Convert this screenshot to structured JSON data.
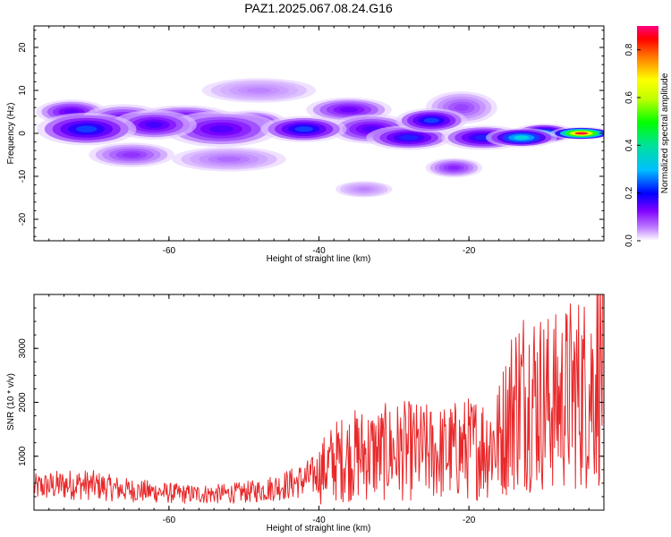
{
  "title": "PAZ1.2025.067.08.24.G16",
  "chart_data": [
    {
      "type": "heatmap",
      "xlabel": "Height of straight line (km)",
      "ylabel": "Frequency (Hz)",
      "xlim": [
        -78,
        -2
      ],
      "ylim": [
        -25,
        25
      ],
      "xticks": [
        -60,
        -40,
        -20
      ],
      "yticks": [
        -20,
        -10,
        0,
        10,
        20
      ],
      "grid": false,
      "colorbar": {
        "label": "Normalized spectral amplitude",
        "range": [
          0,
          0.9
        ],
        "ticks": [
          0.0,
          0.2,
          0.4,
          0.6,
          0.8
        ],
        "colormap": "rainbow"
      },
      "blobs": [
        {
          "x": -71,
          "y": 1,
          "sx": 3.5,
          "sy": 2.0,
          "a": 0.22
        },
        {
          "x": -73,
          "y": 5,
          "sx": 2.5,
          "sy": 1.5,
          "a": 0.14
        },
        {
          "x": -66,
          "y": 3,
          "sx": 3.0,
          "sy": 2.0,
          "a": 0.14
        },
        {
          "x": -62,
          "y": 2,
          "sx": 3.0,
          "sy": 1.8,
          "a": 0.16
        },
        {
          "x": -58,
          "y": 3.5,
          "sx": 3.5,
          "sy": 1.6,
          "a": 0.14
        },
        {
          "x": -53,
          "y": 1,
          "sx": 4.0,
          "sy": 2.2,
          "a": 0.15
        },
        {
          "x": -49,
          "y": 2.5,
          "sx": 2.5,
          "sy": 1.5,
          "a": 0.14
        },
        {
          "x": -42,
          "y": 1,
          "sx": 3.0,
          "sy": 1.6,
          "a": 0.22
        },
        {
          "x": -36,
          "y": 5.5,
          "sx": 3.0,
          "sy": 1.5,
          "a": 0.13
        },
        {
          "x": -33,
          "y": 1,
          "sx": 3.0,
          "sy": 1.8,
          "a": 0.15
        },
        {
          "x": -28,
          "y": -1,
          "sx": 3.0,
          "sy": 1.5,
          "a": 0.2
        },
        {
          "x": -25,
          "y": 3,
          "sx": 2.5,
          "sy": 1.5,
          "a": 0.22
        },
        {
          "x": -18,
          "y": -1,
          "sx": 3.0,
          "sy": 1.5,
          "a": 0.2
        },
        {
          "x": -13,
          "y": -1,
          "sx": 2.5,
          "sy": 1.2,
          "a": 0.35
        },
        {
          "x": -10,
          "y": 0,
          "sx": 2.2,
          "sy": 1.2,
          "a": 0.3
        },
        {
          "x": -5,
          "y": 0,
          "sx": 2.2,
          "sy": 0.8,
          "a": 0.85
        },
        {
          "x": -52,
          "y": -6,
          "sx": 4.0,
          "sy": 1.5,
          "a": 0.06
        },
        {
          "x": -65,
          "y": -5,
          "sx": 3.0,
          "sy": 1.5,
          "a": 0.09
        },
        {
          "x": -22,
          "y": -8,
          "sx": 2.0,
          "sy": 1.2,
          "a": 0.1
        },
        {
          "x": -21,
          "y": 6,
          "sx": 2.5,
          "sy": 2.0,
          "a": 0.08
        },
        {
          "x": -48,
          "y": 10,
          "sx": 4.0,
          "sy": 1.5,
          "a": 0.05
        },
        {
          "x": -34,
          "y": -13,
          "sx": 2.0,
          "sy": 1.0,
          "a": 0.05
        }
      ]
    },
    {
      "type": "line",
      "xlabel": "Height of straight line (km)",
      "ylabel": "SNR (10 * v/v)",
      "xlim": [
        -78,
        -2
      ],
      "ylim": [
        0,
        4000
      ],
      "xticks": [
        -60,
        -40,
        -20
      ],
      "yticks": [
        1000,
        2000,
        3000
      ],
      "grid": false,
      "color": "#e8282a",
      "series": [
        {
          "x": [
            -78,
            -76,
            -74,
            -72,
            -70,
            -68,
            -66,
            -64,
            -62,
            -60,
            -58,
            -56,
            -54,
            -52,
            -50,
            -48,
            -46,
            -44,
            -42,
            -40,
            -38,
            -36,
            -34,
            -32,
            -30,
            -28,
            -26,
            -24,
            -22,
            -20,
            -18,
            -16,
            -14,
            -12,
            -10,
            -8,
            -6,
            -4,
            -2
          ],
          "values": [
            420,
            450,
            470,
            480,
            460,
            420,
            380,
            360,
            340,
            320,
            300,
            300,
            300,
            310,
            330,
            360,
            420,
            480,
            560,
            680,
            900,
            1000,
            1050,
            1050,
            1100,
            1100,
            1080,
            1050,
            1100,
            1150,
            1200,
            1300,
            2000,
            2200,
            2000,
            2000,
            2200,
            2200,
            2800
          ]
        }
      ]
    }
  ]
}
